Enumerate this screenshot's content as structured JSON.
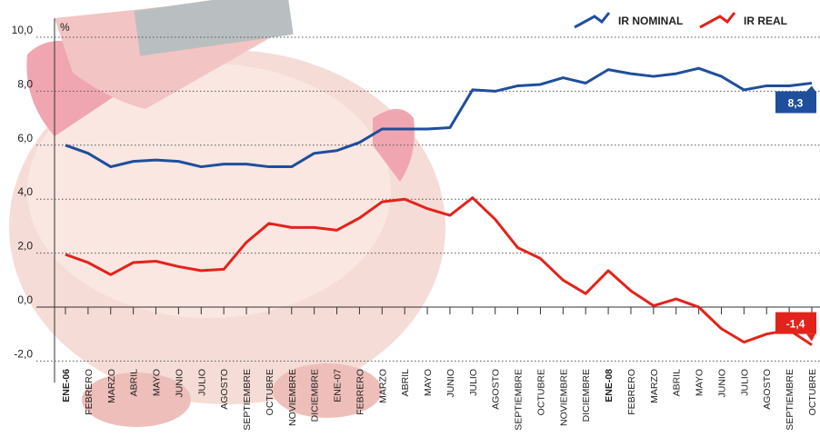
{
  "chart_data": {
    "type": "line",
    "y_label": "%",
    "categories": [
      "ENE-06",
      "FEBRERO",
      "MARZO",
      "ABRIL",
      "MAYO",
      "JUNIO",
      "JULIO",
      "AGOSTO",
      "SEPTIEMBRE",
      "OCTUBRE",
      "NOVIEMBRE",
      "DICIEMBRE",
      "ENE-07",
      "FEBRERO",
      "MARZO",
      "ABRIL",
      "MAYO",
      "JUNIO",
      "JULIO",
      "AGOSTO",
      "SEPTIEMBRE",
      "OCTUBRE",
      "NOVIEMBRE",
      "DICIEMBRE",
      "ENE-08",
      "FEBRERO",
      "MARZO",
      "ABRIL",
      "MAYO",
      "JUNIO",
      "JULIO",
      "AGOSTO",
      "SEPTIEMBRE",
      "OCTUBRE"
    ],
    "series": [
      {
        "name": "IR NOMINAL",
        "color": "#1f4e9c",
        "values": [
          6.0,
          5.7,
          5.2,
          5.4,
          5.45,
          5.4,
          5.2,
          5.3,
          5.3,
          5.2,
          5.2,
          5.7,
          5.8,
          6.1,
          6.6,
          6.6,
          6.6,
          6.65,
          8.05,
          8.0,
          8.2,
          8.25,
          8.5,
          8.3,
          8.8,
          8.65,
          8.55,
          8.65,
          8.85,
          8.55,
          8.05,
          8.2,
          8.2,
          8.3
        ],
        "value_labels": [
          null,
          null,
          null,
          null,
          null,
          null,
          null,
          null,
          null,
          null,
          null,
          null,
          null,
          null,
          null,
          null,
          null,
          null,
          null,
          null,
          null,
          null,
          null,
          null,
          null,
          null,
          null,
          null,
          null,
          null,
          null,
          null,
          null,
          "8,3"
        ]
      },
      {
        "name": "IR REAL",
        "color": "#e3231b",
        "values": [
          1.95,
          1.65,
          1.2,
          1.65,
          1.7,
          1.5,
          1.35,
          1.4,
          2.4,
          3.1,
          2.95,
          2.95,
          2.85,
          3.3,
          3.9,
          4.0,
          3.65,
          3.4,
          4.05,
          3.25,
          2.2,
          1.8,
          1.0,
          0.5,
          1.35,
          0.6,
          0.05,
          0.3,
          0.0,
          -0.8,
          -1.3,
          -1.0,
          -0.85,
          -1.4
        ],
        "value_labels": [
          null,
          null,
          null,
          null,
          null,
          null,
          null,
          null,
          null,
          null,
          null,
          null,
          null,
          null,
          null,
          null,
          null,
          null,
          null,
          null,
          null,
          null,
          null,
          null,
          null,
          null,
          null,
          null,
          null,
          null,
          null,
          null,
          null,
          "-1,4"
        ]
      }
    ],
    "ylim": [
      -2.8,
      10.7
    ],
    "yticks": [
      {
        "value": -2,
        "label": "-2,0"
      },
      {
        "value": 0,
        "label": "0,0"
      },
      {
        "value": 2,
        "label": "2,0"
      },
      {
        "value": 4,
        "label": "4,0"
      },
      {
        "value": 6,
        "label": "6,0"
      },
      {
        "value": 8,
        "label": "8,0"
      },
      {
        "value": 10,
        "label": "10,0"
      }
    ],
    "grid": true
  }
}
